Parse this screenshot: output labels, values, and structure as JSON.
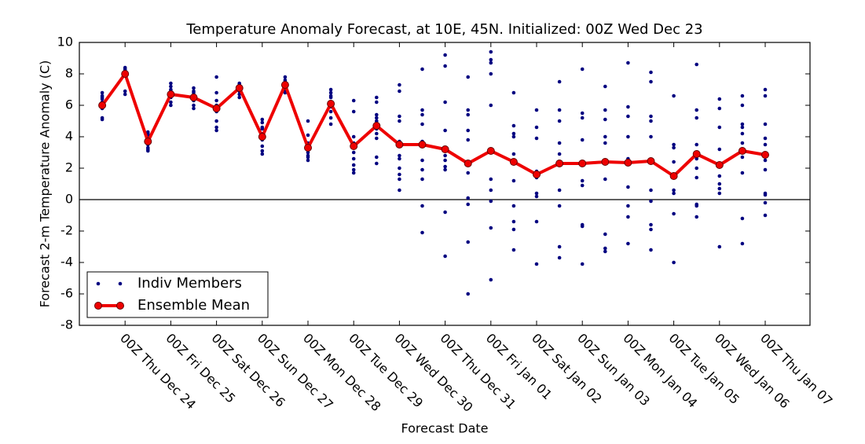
{
  "chart_data": {
    "type": "scatter-line",
    "title": "Temperature Anomaly Forecast, at 10E, 45N.  Initialized: 00Z Wed Dec 23",
    "x_label": "Forecast Date",
    "y_label": "Forecast 2-m Temperature Anomaly (C)",
    "categories": [
      null,
      "00Z Thu Dec 24",
      null,
      "00Z Fri Dec 25",
      null,
      "00Z Sat Dec 26",
      null,
      "00Z Sun Dec 27",
      null,
      "00Z Mon Dec 28",
      null,
      "00Z Tue Dec 29",
      null,
      "00Z Wed Dec 30",
      null,
      "00Z Thu Dec 31",
      null,
      "00Z Fri Jan 01",
      null,
      "00Z Sat Jan 02",
      null,
      "00Z Sun Jan 03",
      null,
      "00Z Mon Jan 04",
      null,
      "00Z Tue Jan 05",
      null,
      "00Z Wed Jan 06",
      null,
      "00Z Thu Jan 07"
    ],
    "series": [
      {
        "name": "Indiv Members",
        "color": "#000080",
        "values": [
          [
            6.8,
            6.6,
            6.4,
            6.2,
            6.0,
            5.8,
            5.2,
            5.1,
            6.5,
            6.1
          ],
          [
            8.4,
            8.3,
            8.2,
            8.1,
            7.9,
            6.9,
            6.7,
            8.0,
            8.2
          ],
          [
            4.3,
            4.1,
            3.9,
            3.7,
            3.5,
            3.3,
            3.1,
            4.2,
            3.2
          ],
          [
            7.4,
            7.2,
            7.0,
            6.8,
            6.5,
            6.2,
            6.0,
            6.9,
            6.6
          ],
          [
            7.1,
            6.9,
            6.6,
            6.3,
            6.0,
            5.8,
            6.8
          ],
          [
            7.8,
            6.8,
            6.3,
            5.9,
            5.6,
            5.0,
            4.6,
            4.4,
            6.0
          ],
          [
            7.4,
            7.3,
            7.1,
            6.9,
            6.7,
            6.5,
            7.0
          ],
          [
            5.1,
            4.9,
            4.5,
            4.2,
            3.8,
            3.4,
            3.1,
            2.9,
            4.6
          ],
          [
            7.8,
            7.6,
            7.4,
            7.2,
            7.0,
            6.8,
            7.5
          ],
          [
            5.0,
            4.1,
            3.6,
            3.3,
            3.0,
            2.7,
            2.5,
            2.8
          ],
          [
            7.0,
            6.8,
            6.5,
            6.2,
            5.9,
            5.6,
            5.2,
            4.8,
            6.6
          ],
          [
            6.3,
            5.6,
            4.0,
            3.4,
            3.0,
            2.6,
            2.2,
            1.9,
            1.7,
            3.6
          ],
          [
            6.5,
            6.2,
            5.4,
            5.0,
            4.8,
            4.5,
            4.2,
            3.9,
            2.7,
            2.3,
            5.2
          ],
          [
            7.3,
            6.9,
            5.3,
            5.0,
            3.7,
            3.5,
            2.8,
            2.6,
            2.0,
            1.6,
            1.3,
            0.6
          ],
          [
            8.3,
            5.7,
            5.4,
            4.8,
            3.7,
            3.5,
            2.5,
            1.9,
            1.3,
            -0.4,
            -2.1
          ],
          [
            9.2,
            8.5,
            6.2,
            4.4,
            3.2,
            2.8,
            2.5,
            2.1,
            1.9,
            -0.8,
            -3.6
          ],
          [
            7.8,
            5.7,
            5.4,
            4.4,
            3.8,
            2.2,
            1.7,
            0.1,
            -0.3,
            -2.7,
            -6.0
          ],
          [
            9.4,
            8.9,
            8.7,
            8.0,
            6.0,
            3.0,
            1.3,
            0.6,
            -0.1,
            -1.8,
            -5.1
          ],
          [
            6.8,
            4.7,
            4.2,
            4.0,
            2.9,
            2.4,
            1.2,
            -0.4,
            -1.4,
            -1.9,
            -3.2
          ],
          [
            5.7,
            4.6,
            3.9,
            1.8,
            1.6,
            1.4,
            0.4,
            0.2,
            -1.4,
            -4.1
          ],
          [
            7.5,
            5.7,
            5.0,
            3.6,
            2.9,
            2.3,
            0.6,
            -0.4,
            -3.0,
            -3.7
          ],
          [
            8.3,
            5.5,
            5.2,
            3.8,
            2.3,
            1.2,
            0.9,
            -1.6,
            -1.7,
            -4.1
          ],
          [
            7.2,
            5.7,
            5.1,
            4.0,
            3.6,
            2.4,
            1.3,
            -2.2,
            -3.1,
            -3.3
          ],
          [
            8.7,
            5.9,
            5.3,
            4.0,
            2.6,
            2.3,
            0.8,
            -0.4,
            -1.1,
            -2.8
          ],
          [
            8.1,
            7.5,
            5.3,
            5.0,
            4.0,
            2.5,
            0.6,
            -0.1,
            -1.6,
            -1.9,
            -3.2
          ],
          [
            6.6,
            3.5,
            3.3,
            2.4,
            1.6,
            0.6,
            0.4,
            -0.9,
            -4.0
          ],
          [
            8.6,
            5.7,
            5.2,
            3.5,
            2.6,
            2.0,
            1.4,
            -0.3,
            -0.4,
            -1.1
          ],
          [
            6.4,
            5.8,
            4.6,
            3.2,
            2.2,
            1.5,
            1.0,
            0.7,
            0.4,
            -3.0
          ],
          [
            6.6,
            6.0,
            4.8,
            4.6,
            4.2,
            3.6,
            2.7,
            1.7,
            -1.2,
            -2.8
          ],
          [
            7.0,
            6.6,
            4.8,
            3.9,
            3.5,
            2.5,
            1.9,
            0.4,
            0.3,
            -0.2,
            -1.0
          ]
        ]
      },
      {
        "name": "Ensemble Mean",
        "color": "#ee0000",
        "values": [
          6.0,
          8.0,
          3.7,
          6.7,
          6.5,
          5.8,
          7.1,
          4.0,
          7.3,
          3.3,
          6.1,
          3.4,
          4.7,
          3.5,
          3.5,
          3.2,
          2.3,
          3.1,
          2.4,
          1.6,
          2.3,
          2.3,
          2.4,
          2.35,
          2.45,
          1.5,
          2.9,
          2.2,
          3.1,
          2.85
        ]
      }
    ],
    "ylim": [
      -8,
      10
    ],
    "yticks": [
      -8,
      -6,
      -4,
      -2,
      0,
      2,
      4,
      6,
      8,
      10
    ],
    "axhline": 0,
    "legend": "lower left"
  }
}
